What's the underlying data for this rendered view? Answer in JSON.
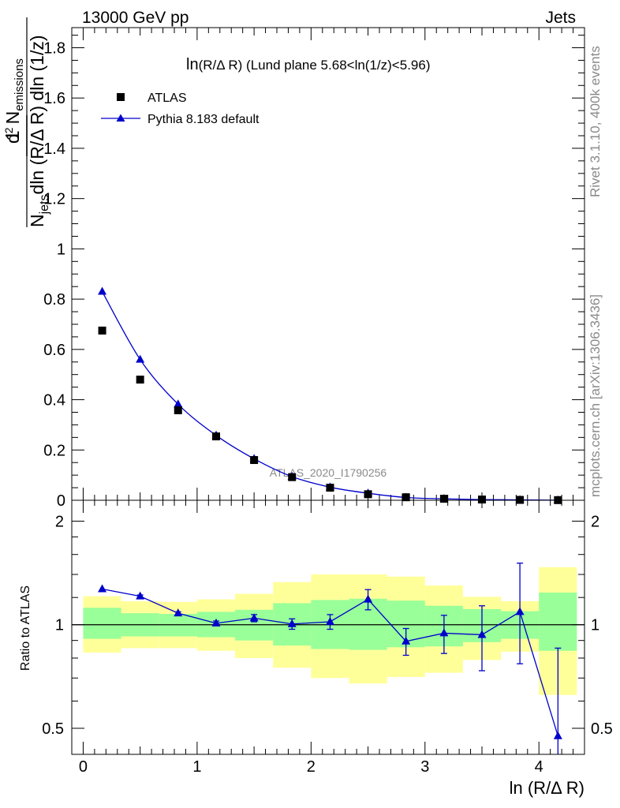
{
  "header": {
    "left": "13000 GeV pp",
    "right": "Jets"
  },
  "side_labels": {
    "rivet": "Rivet 3.1.10,  400k events",
    "mcplots": "mcplots.cern.ch [arXiv:1306.3436]"
  },
  "chart_data": [
    {
      "type": "scatter",
      "panel": "main",
      "title": "ln(R/Δ R) (Lund plane 5.68<ln(1/z)<5.96)",
      "title_prefix": "ln",
      "title_rest": "(R/Δ R) (Lund plane 5.68<ln(1/z)<5.96)",
      "ylabel": "1/N_jets d² N_emissions / dln (R/Δ R) dln (1/z)",
      "ylabel_parts": {
        "one": "1",
        "njets_main": "N",
        "njets_sub": "jets",
        "njets_rest": "dln (R/Δ R) dln (1/z)",
        "num_d": "d",
        "num_exp": "2",
        "num_N": "N",
        "num_sub": "emissions"
      },
      "watermark": "ATLAS_2020_I1790256",
      "xlim": [
        -0.1,
        4.4
      ],
      "ylim": [
        0,
        1.88
      ],
      "yticks": [
        0,
        0.2,
        0.4,
        0.6,
        0.8,
        1,
        1.2,
        1.4,
        1.6,
        1.8
      ],
      "ytick_labels": [
        "0",
        "0.2",
        "0.4",
        "0.6",
        "0.8",
        "1",
        "1.2",
        "1.4",
        "1.6",
        "1.8"
      ],
      "legend": {
        "position": "top-left",
        "entries": [
          "ATLAS",
          "Pythia 8.183 default"
        ]
      },
      "x": [
        0.167,
        0.5,
        0.833,
        1.167,
        1.5,
        1.833,
        2.167,
        2.5,
        2.833,
        3.167,
        3.5,
        3.833,
        4.167
      ],
      "series": [
        {
          "name": "ATLAS",
          "marker": "square",
          "color": "#000000",
          "values": [
            0.675,
            0.48,
            0.358,
            0.254,
            0.16,
            0.092,
            0.05,
            0.024,
            0.012,
            0.006,
            0.003,
            0.0015,
            0.0006
          ]
        },
        {
          "name": "Pythia 8.183 default",
          "marker": "triangle",
          "color": "#0000cc",
          "values": [
            0.83,
            0.56,
            0.382,
            0.258,
            0.165,
            0.094,
            0.052,
            0.028,
            0.011,
            0.0057,
            0.0028,
            0.0016,
            0.0003
          ]
        }
      ]
    },
    {
      "type": "scatter",
      "panel": "ratio",
      "ylabel": "Ratio to ATLAS",
      "xlabel": "ln (R/Δ R)",
      "xlim": [
        -0.1,
        4.4
      ],
      "ylim": [
        0.42,
        2.3
      ],
      "ylog": true,
      "yticks": [
        0.5,
        1,
        2
      ],
      "ytick_labels": [
        "0.5",
        "1",
        "2"
      ],
      "xticks": [
        0,
        1,
        2,
        3,
        4
      ],
      "xtick_labels": [
        "0",
        "1",
        "2",
        "3",
        "4"
      ],
      "reference_line": 1,
      "bins": [
        {
          "lo": 0.0,
          "hi": 0.333,
          "yellow": [
            0.83,
            1.21
          ],
          "green": [
            0.91,
            1.12
          ]
        },
        {
          "lo": 0.333,
          "hi": 0.667,
          "yellow": [
            0.855,
            1.17
          ],
          "green": [
            0.925,
            1.08
          ]
        },
        {
          "lo": 0.667,
          "hi": 1.0,
          "yellow": [
            0.855,
            1.165
          ],
          "green": [
            0.925,
            1.075
          ]
        },
        {
          "lo": 1.0,
          "hi": 1.333,
          "yellow": [
            0.84,
            1.185
          ],
          "green": [
            0.92,
            1.09
          ]
        },
        {
          "lo": 1.333,
          "hi": 1.667,
          "yellow": [
            0.8,
            1.23
          ],
          "green": [
            0.9,
            1.105
          ]
        },
        {
          "lo": 1.667,
          "hi": 2.0,
          "yellow": [
            0.75,
            1.33
          ],
          "green": [
            0.87,
            1.155
          ]
        },
        {
          "lo": 2.0,
          "hi": 2.333,
          "yellow": [
            0.7,
            1.4
          ],
          "green": [
            0.85,
            1.18
          ]
        },
        {
          "lo": 2.333,
          "hi": 2.667,
          "yellow": [
            0.675,
            1.4
          ],
          "green": [
            0.845,
            1.19
          ]
        },
        {
          "lo": 2.667,
          "hi": 3.0,
          "yellow": [
            0.705,
            1.38
          ],
          "green": [
            0.86,
            1.175
          ]
        },
        {
          "lo": 3.0,
          "hi": 3.333,
          "yellow": [
            0.725,
            1.3
          ],
          "green": [
            0.865,
            1.135
          ]
        },
        {
          "lo": 3.333,
          "hi": 3.667,
          "yellow": [
            0.79,
            1.205
          ],
          "green": [
            0.89,
            1.11
          ]
        },
        {
          "lo": 3.667,
          "hi": 4.0,
          "yellow": [
            0.835,
            1.17
          ],
          "green": [
            0.91,
            1.095
          ]
        },
        {
          "lo": 4.0,
          "hi": 4.333,
          "yellow": [
            0.625,
            1.47
          ],
          "green": [
            0.84,
            1.24
          ]
        }
      ],
      "ratio_points": {
        "name": "Pythia 8.183 default",
        "x": [
          0.167,
          0.5,
          0.833,
          1.167,
          1.5,
          1.833,
          2.167,
          2.5,
          2.833,
          3.167,
          3.5,
          3.833,
          4.167
        ],
        "values": [
          1.27,
          1.21,
          1.08,
          1.01,
          1.045,
          1.005,
          1.02,
          1.185,
          0.895,
          0.945,
          0.935,
          1.09,
          0.475
        ],
        "err_lo": [
          0.01,
          0.01,
          0.01,
          0.015,
          0.025,
          0.035,
          0.05,
          0.08,
          0.08,
          0.12,
          0.2,
          0.32,
          0.12
        ],
        "err_hi": [
          0.01,
          0.01,
          0.01,
          0.015,
          0.025,
          0.035,
          0.05,
          0.08,
          0.08,
          0.12,
          0.2,
          0.42,
          0.38
        ]
      }
    }
  ]
}
